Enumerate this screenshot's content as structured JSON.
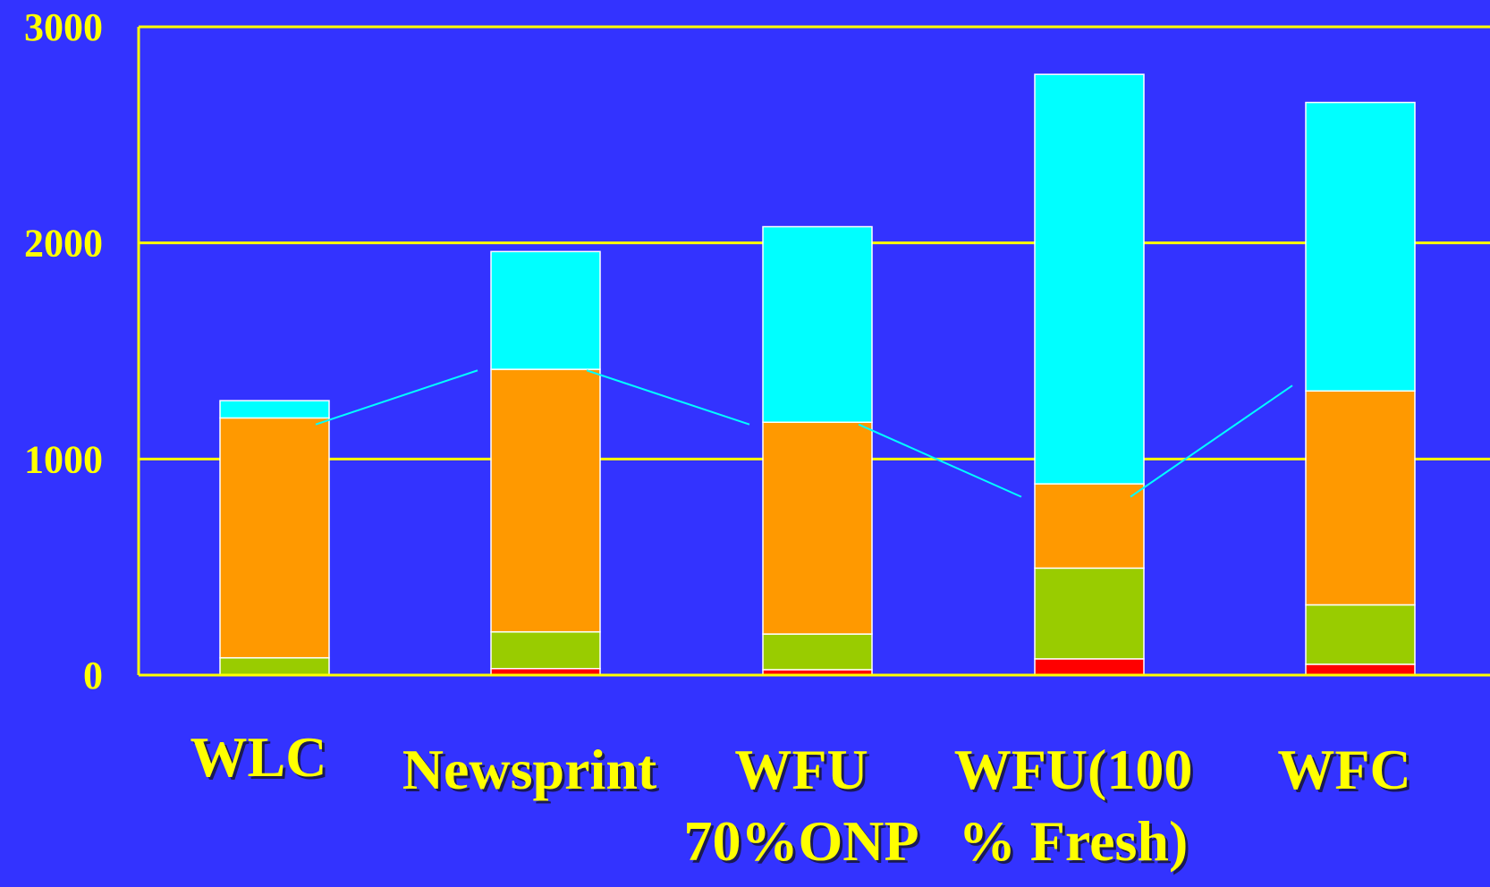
{
  "chart_data": {
    "type": "bar",
    "stacked": true,
    "categories": [
      [
        "WLC"
      ],
      [
        "Newsprint"
      ],
      [
        "WFU",
        "70%ONP"
      ],
      [
        "WFU(100",
        "% Fresh)"
      ],
      [
        "WFC"
      ]
    ],
    "series": [
      {
        "values": [
          0,
          30,
          25,
          75,
          50
        ],
        "color": "#FF0000"
      },
      {
        "values": [
          80,
          170,
          165,
          420,
          275
        ],
        "color": "#99CC00"
      },
      {
        "values": [
          1110,
          1215,
          980,
          390,
          990
        ],
        "color": "#FF9900"
      },
      {
        "values": [
          80,
          545,
          905,
          1895,
          1335
        ],
        "color": "#00FFFF"
      }
    ],
    "line": {
      "values": [
        1160,
        1410,
        1160,
        825,
        1340
      ],
      "color": "#00FFFF"
    },
    "yticks": [
      0,
      1000,
      2000,
      3000
    ],
    "ylim": [
      0,
      3000
    ],
    "grid": true,
    "colors": {
      "background": "#3333FF",
      "axis": "#FFFF00",
      "text": "#FFFF00",
      "bar_outline": "#FFFFFF"
    }
  }
}
